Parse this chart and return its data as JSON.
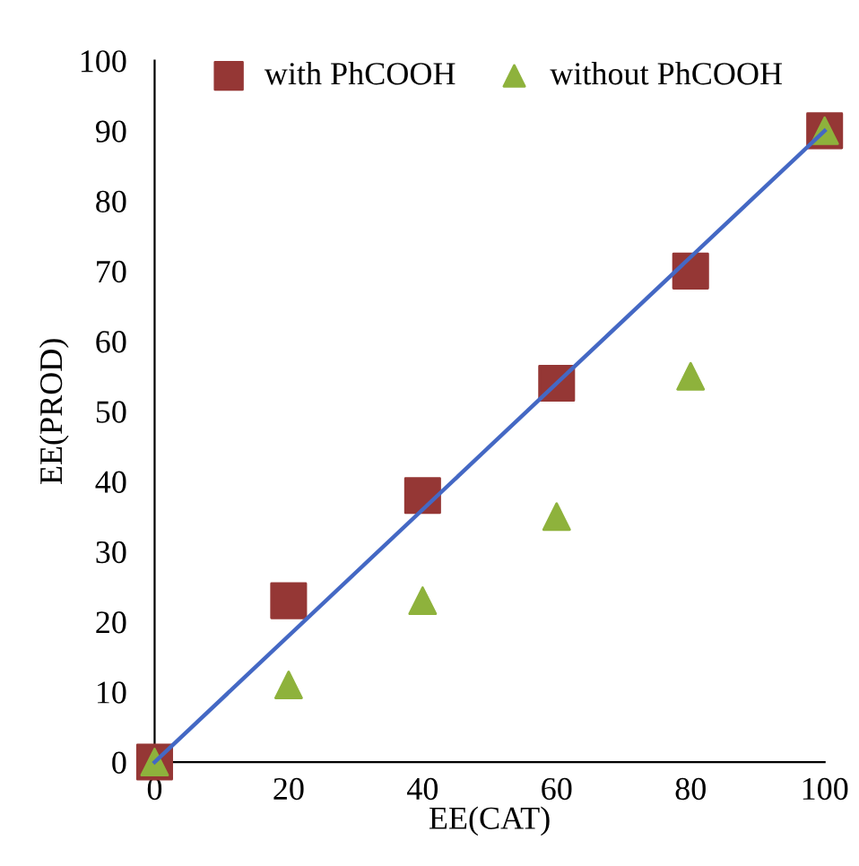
{
  "chart_data": {
    "type": "scatter",
    "xlabel": "EE(CAT)",
    "ylabel": "EE(PROD)",
    "x": [
      0,
      20,
      40,
      60,
      80,
      100
    ],
    "series": [
      {
        "name": "with PhCOOH",
        "color": "#953735",
        "marker": "square",
        "values": [
          0,
          23,
          38,
          54,
          70,
          90
        ]
      },
      {
        "name": "without PhCOOH",
        "color": "#8eb23c",
        "marker": "triangle",
        "values": [
          0,
          11,
          23,
          35,
          55,
          90
        ]
      },
      {
        "type": "line",
        "color": "#4468c4",
        "x": [
          0,
          100
        ],
        "values": [
          0,
          90
        ],
        "marker": "none"
      }
    ],
    "xlim": [
      0,
      100
    ],
    "ylim": [
      0,
      100
    ],
    "xticks": [
      0,
      20,
      40,
      60,
      80,
      100
    ],
    "yticks": [
      0,
      10,
      20,
      30,
      40,
      50,
      60,
      70,
      80,
      90,
      100
    ],
    "grid": false,
    "legend": "top"
  }
}
